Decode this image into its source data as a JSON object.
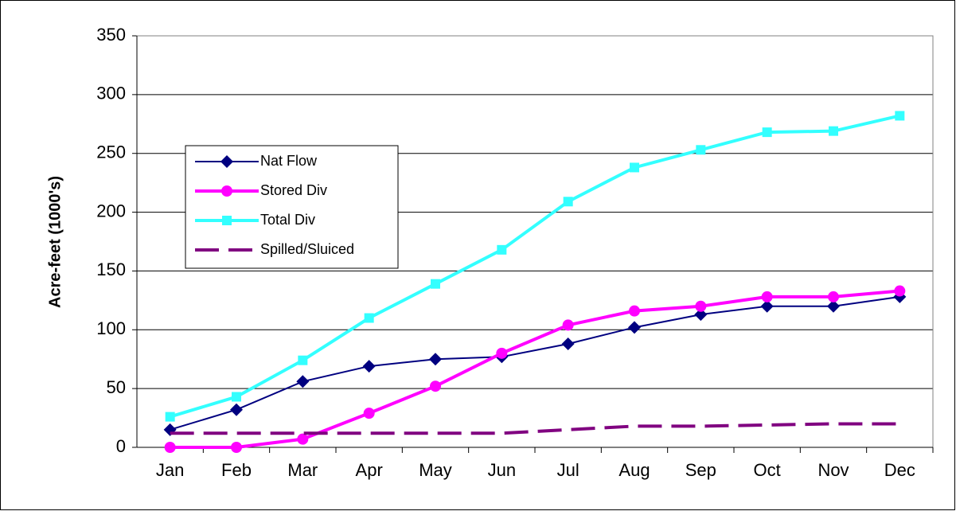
{
  "chart_data": {
    "type": "line",
    "y_label": "Acre-feet (1000's)",
    "categories": [
      "Jan",
      "Feb",
      "Mar",
      "Apr",
      "May",
      "Jun",
      "Jul",
      "Aug",
      "Sep",
      "Oct",
      "Nov",
      "Dec"
    ],
    "series": [
      {
        "name": "Nat Flow",
        "color": "#000080",
        "marker": "diamond",
        "line_style": "solid",
        "values": [
          15,
          32,
          56,
          69,
          75,
          77,
          88,
          102,
          113,
          120,
          120,
          128
        ]
      },
      {
        "name": "Stored Div",
        "color": "#ff00ff",
        "marker": "circle",
        "line_style": "solid",
        "values": [
          0,
          0,
          7,
          29,
          52,
          80,
          104,
          116,
          120,
          128,
          128,
          133
        ]
      },
      {
        "name": "Total Div",
        "color": "#33ffff",
        "marker": "square",
        "line_style": "solid",
        "values": [
          26,
          43,
          74,
          110,
          139,
          168,
          209,
          238,
          253,
          268,
          269,
          282
        ]
      },
      {
        "name": "Spilled/Sluiced",
        "color": "#800080",
        "marker": "none",
        "line_style": "dashed",
        "values": [
          12,
          12,
          12,
          12,
          12,
          12,
          15,
          18,
          18,
          19,
          20,
          20
        ]
      }
    ],
    "ylim": [
      0,
      350
    ],
    "yticks": [
      0,
      50,
      100,
      150,
      200,
      250,
      300,
      350
    ],
    "grid": true,
    "legend": "left"
  }
}
